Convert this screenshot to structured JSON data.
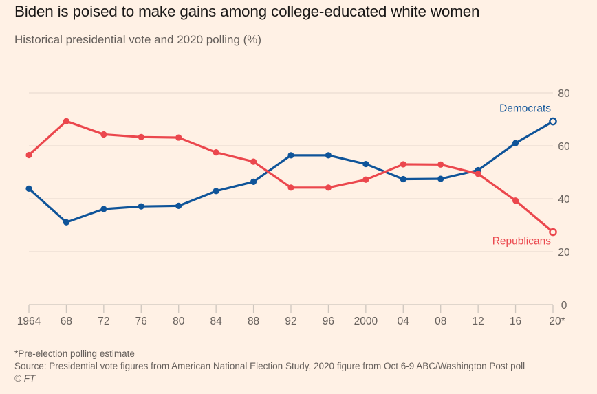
{
  "header": {
    "title": "Biden is poised to make gains among college-educated white women",
    "subtitle": "Historical presidential vote and 2020 polling (%)"
  },
  "footer": {
    "note": "*Pre-election polling estimate",
    "source": "Source: Presidential vote figures from American National Election Study, 2020 figure from Oct 6-9 ABC/Washington Post poll",
    "copyright": "© FT"
  },
  "colors": {
    "background": "#FFF1E5",
    "democrats": "#0F5499",
    "republicans": "#EB474D",
    "gridline": "#E9DDD2",
    "axis": "#CEC6BE",
    "tick_text": "#66605C"
  },
  "chart_data": {
    "type": "line",
    "title": "Biden is poised to make gains among college-educated white women",
    "subtitle": "Historical presidential vote and 2020 polling (%)",
    "xlabel": "",
    "ylabel": "",
    "x": [
      1964,
      1968,
      1972,
      1976,
      1980,
      1984,
      1988,
      1992,
      1996,
      2000,
      2004,
      2008,
      2012,
      2016,
      2020
    ],
    "x_tick_labels": [
      "1964",
      "68",
      "72",
      "76",
      "80",
      "84",
      "88",
      "92",
      "96",
      "2000",
      "04",
      "08",
      "12",
      "16",
      "20*"
    ],
    "ylim": [
      0,
      80
    ],
    "y_ticks": [
      0,
      20,
      40,
      60,
      80
    ],
    "y_tick_labels": [
      "0",
      "20",
      "40",
      "60",
      "80"
    ],
    "y_axis_side": "right",
    "grid": true,
    "legend": "direct-labels at right end of lines",
    "series": [
      {
        "name": "Democrats",
        "label": "Democrats",
        "color": "#0F5499",
        "values": [
          43.8,
          31.1,
          36.1,
          37.1,
          37.3,
          42.9,
          46.4,
          56.4,
          56.4,
          53.1,
          47.4,
          47.5,
          50.8,
          61.0,
          69.2
        ],
        "last_point_hollow": true
      },
      {
        "name": "Republicans",
        "label": "Republicans",
        "color": "#EB474D",
        "values": [
          56.5,
          69.3,
          64.3,
          63.3,
          63.1,
          57.5,
          54.0,
          44.2,
          44.2,
          47.2,
          53.0,
          52.9,
          49.4,
          39.3,
          27.4
        ],
        "last_point_hollow": true
      }
    ],
    "annotations": [
      "*Pre-election polling estimate"
    ]
  }
}
